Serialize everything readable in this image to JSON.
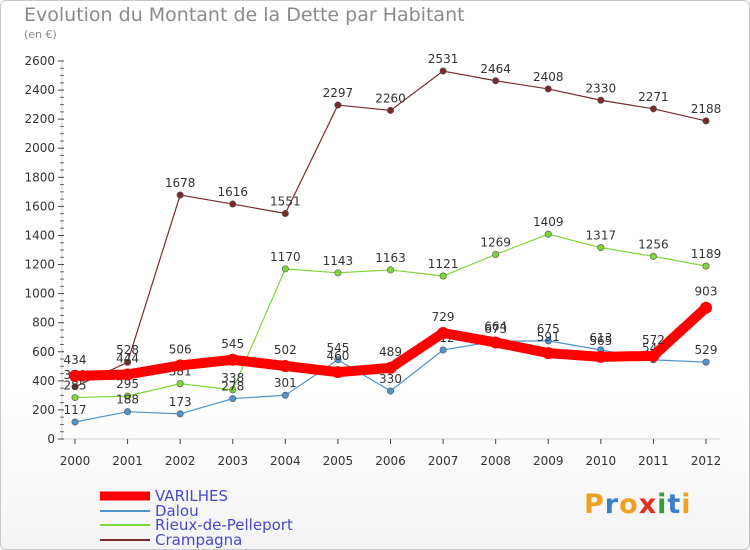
{
  "chart_data": {
    "type": "line",
    "title": "Evolution du Montant de la Dette par Habitant",
    "subtitle": "(en €)",
    "x": [
      "2000",
      "2001",
      "2002",
      "2003",
      "2004",
      "2005",
      "2006",
      "2007",
      "2008",
      "2009",
      "2010",
      "2011",
      "2012"
    ],
    "ylim": [
      0,
      2600
    ],
    "yticks": [
      0,
      200,
      400,
      600,
      800,
      1000,
      1200,
      1400,
      1600,
      1800,
      2000,
      2200,
      2400,
      2600
    ],
    "grid": false,
    "legend": "bottom-left",
    "series": [
      {
        "name": "VARILHES",
        "color": "#ff0000",
        "values": [
          434,
          444,
          506,
          545,
          502,
          460,
          489,
          729,
          664,
          591,
          565,
          572,
          903
        ]
      },
      {
        "name": "Dalou",
        "color": "#4f94cd",
        "values": [
          117,
          188,
          173,
          278,
          301,
          545,
          330,
          612,
          673,
          675,
          613,
          544,
          529
        ]
      },
      {
        "name": "Rieux-de-Pelleport",
        "color": "#7fd63a",
        "values": [
          285,
          295,
          381,
          338,
          1170,
          1143,
          1163,
          1121,
          1269,
          1409,
          1317,
          1256,
          1189
        ]
      },
      {
        "name": "Crampagna",
        "color": "#7a2a2a",
        "values": [
          359,
          528,
          1678,
          1616,
          1551,
          2297,
          2260,
          2531,
          2464,
          2408,
          2330,
          2271,
          2188
        ]
      }
    ]
  },
  "logo": {
    "letters": [
      "P",
      "r",
      "o",
      "x",
      "i",
      "t",
      "i"
    ],
    "colors": [
      "#f0a020",
      "#3a7fd0",
      "#f0a020",
      "#e03020",
      "#3a9a3a",
      "#3a7fd0",
      "#f0a020"
    ]
  }
}
